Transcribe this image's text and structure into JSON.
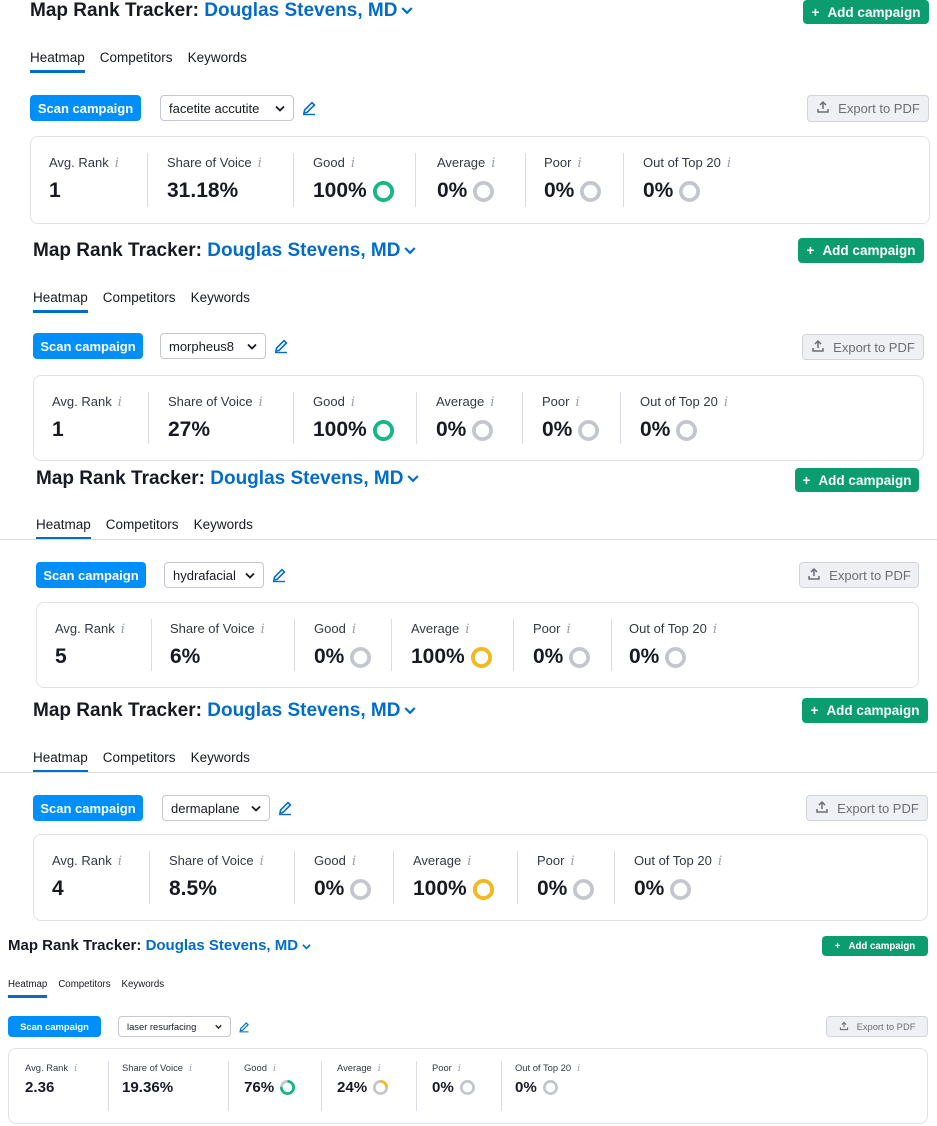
{
  "app": {
    "title_prefix": "Map Rank Tracker:",
    "project": "Douglas Stevens, MD",
    "add_campaign": "Add campaign",
    "tabs": [
      "Heatmap",
      "Competitors",
      "Keywords"
    ],
    "scan": "Scan campaign",
    "export": "Export to PDF",
    "stat_labels": [
      "Avg. Rank",
      "Share of Voice",
      "Good",
      "Average",
      "Poor",
      "Out of Top 20"
    ],
    "info_glyph": "i"
  },
  "colors": {
    "good": "#13b886",
    "average": "#f5b91d",
    "empty": "#c3c6cd",
    "accent": "#006dca",
    "scan": "#008ff8",
    "add": "#0c9d6f"
  },
  "panels": [
    {
      "keyword": "facetite accutite",
      "avg_rank": "1",
      "share_of_voice": "31.18%",
      "good": "100%",
      "average": "0%",
      "poor": "0%",
      "out_of_top20": "0%",
      "good_fraction": 1,
      "average_fraction": 0
    },
    {
      "keyword": "morpheus8",
      "avg_rank": "1",
      "share_of_voice": "27%",
      "good": "100%",
      "average": "0%",
      "poor": "0%",
      "out_of_top20": "0%",
      "good_fraction": 1,
      "average_fraction": 0
    },
    {
      "keyword": "hydrafacial",
      "avg_rank": "5",
      "share_of_voice": "6%",
      "good": "0%",
      "average": "100%",
      "poor": "0%",
      "out_of_top20": "0%",
      "good_fraction": 0,
      "average_fraction": 1
    },
    {
      "keyword": "dermaplane",
      "avg_rank": "4",
      "share_of_voice": "8.5%",
      "good": "0%",
      "average": "100%",
      "poor": "0%",
      "out_of_top20": "0%",
      "good_fraction": 0,
      "average_fraction": 1
    },
    {
      "keyword": "laser resurfacing",
      "avg_rank": "2.36",
      "share_of_voice": "19.36%",
      "good": "76%",
      "average": "24%",
      "poor": "0%",
      "out_of_top20": "0%",
      "good_fraction": 0.76,
      "average_fraction": 0.24
    }
  ]
}
